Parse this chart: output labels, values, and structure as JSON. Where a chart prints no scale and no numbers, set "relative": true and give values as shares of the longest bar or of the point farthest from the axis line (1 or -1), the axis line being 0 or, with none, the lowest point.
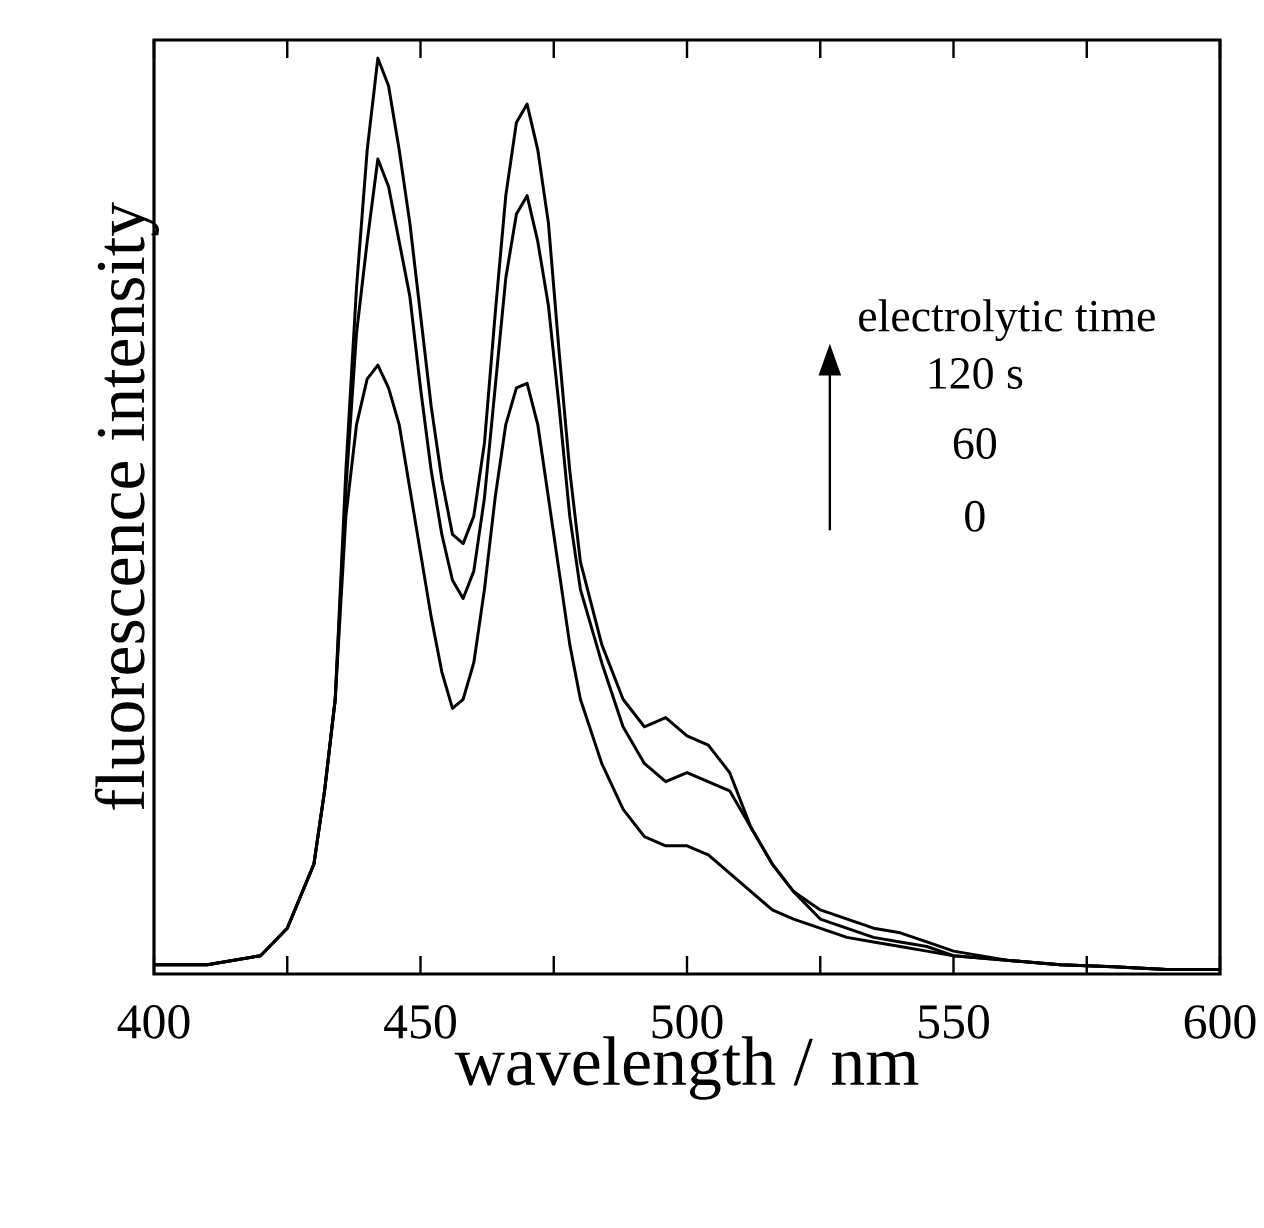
{
  "chart_data": {
    "type": "line",
    "relative": true,
    "xlabel": "wavelength / nm",
    "ylabel": "fluorescence intensity",
    "xlim": [
      400,
      600
    ],
    "xticks": [
      400,
      {
        "value": 425,
        "label": null
      },
      450,
      {
        "value": 475,
        "label": null
      },
      500,
      {
        "value": 525,
        "label": null
      },
      550,
      {
        "value": 575,
        "label": null
      },
      600
    ],
    "marker": "none",
    "grid": false,
    "annotations": [
      "electrolytic time",
      "120 s",
      "60",
      "0"
    ],
    "x": [
      400,
      410,
      420,
      425,
      430,
      432,
      434,
      436,
      438,
      440,
      442,
      444,
      446,
      448,
      450,
      452,
      454,
      456,
      458,
      460,
      462,
      464,
      466,
      468,
      470,
      472,
      474,
      476,
      478,
      480,
      484,
      488,
      492,
      496,
      500,
      504,
      508,
      512,
      516,
      520,
      525,
      530,
      535,
      540,
      545,
      550,
      560,
      570,
      580,
      590,
      600
    ],
    "series": [
      {
        "color": "#000000",
        "values": [
          0.01,
          0.01,
          0.02,
          0.05,
          0.12,
          0.2,
          0.3,
          0.55,
          0.75,
          0.9,
          1.0,
          0.97,
          0.9,
          0.82,
          0.72,
          0.62,
          0.54,
          0.48,
          0.47,
          0.5,
          0.58,
          0.72,
          0.85,
          0.93,
          0.95,
          0.9,
          0.82,
          0.68,
          0.55,
          0.45,
          0.36,
          0.3,
          0.27,
          0.28,
          0.26,
          0.25,
          0.22,
          0.16,
          0.12,
          0.09,
          0.06,
          0.05,
          0.04,
          0.035,
          0.03,
          0.02,
          0.015,
          0.01,
          0.008,
          0.005,
          0.005
        ]
      },
      {
        "color": "#000000",
        "values": [
          0.01,
          0.01,
          0.02,
          0.05,
          0.12,
          0.2,
          0.3,
          0.53,
          0.7,
          0.8,
          0.89,
          0.86,
          0.8,
          0.74,
          0.64,
          0.55,
          0.48,
          0.43,
          0.41,
          0.44,
          0.52,
          0.64,
          0.76,
          0.83,
          0.85,
          0.8,
          0.73,
          0.62,
          0.5,
          0.42,
          0.34,
          0.27,
          0.23,
          0.21,
          0.22,
          0.21,
          0.2,
          0.16,
          0.12,
          0.09,
          0.07,
          0.06,
          0.05,
          0.045,
          0.035,
          0.025,
          0.015,
          0.01,
          0.008,
          0.005,
          0.005
        ]
      },
      {
        "color": "#000000",
        "values": [
          0.01,
          0.01,
          0.02,
          0.05,
          0.12,
          0.2,
          0.3,
          0.5,
          0.6,
          0.65,
          0.665,
          0.64,
          0.6,
          0.53,
          0.46,
          0.39,
          0.33,
          0.29,
          0.3,
          0.34,
          0.42,
          0.52,
          0.6,
          0.64,
          0.645,
          0.6,
          0.52,
          0.44,
          0.36,
          0.3,
          0.23,
          0.18,
          0.15,
          0.14,
          0.14,
          0.13,
          0.11,
          0.09,
          0.07,
          0.06,
          0.05,
          0.04,
          0.035,
          0.03,
          0.025,
          0.02,
          0.015,
          0.01,
          0.008,
          0.005,
          0.005
        ]
      }
    ]
  }
}
